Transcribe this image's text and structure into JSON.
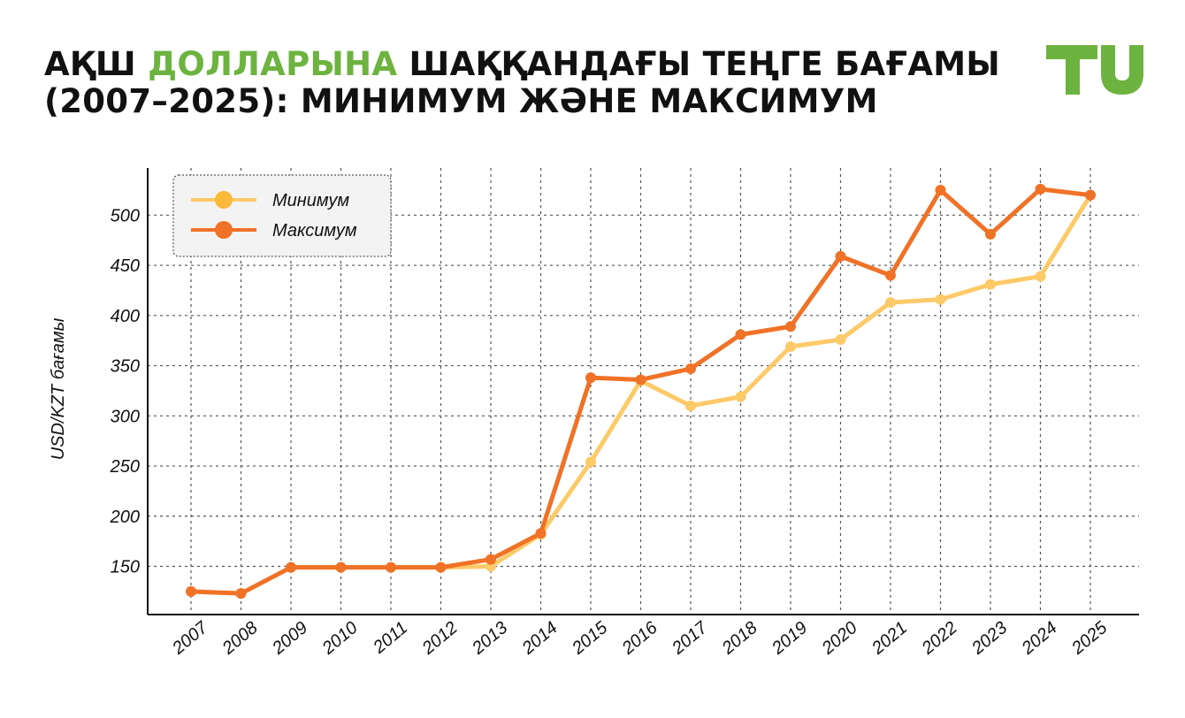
{
  "header": {
    "title_part1": "АҚШ ",
    "title_accent": "ДОЛЛАРЫНА",
    "title_part2": " ШАҚҚАНДАҒЫ ТЕҢГЕ БАҒАМЫ",
    "title_line2": "(2007–2025): МИНИМУМ ЖӘНЕ МАКСИМУМ",
    "logo_text": "TU"
  },
  "colors": {
    "accent": "#6db33f",
    "min_series": "#fdca68",
    "max_series": "#f07227",
    "legend_min_marker": "#fbb93a"
  },
  "chart_data": {
    "type": "line",
    "ylabel": "USD/KZT бағамы",
    "xlabel": "",
    "x": [
      "2007",
      "2008",
      "2009",
      "2010",
      "2011",
      "2012",
      "2013",
      "2014",
      "2015",
      "2016",
      "2017",
      "2018",
      "2019",
      "2020",
      "2021",
      "2022",
      "2023",
      "2024",
      "2025"
    ],
    "series": [
      {
        "name": "Минимум",
        "values": [
          125,
          123,
          149,
          149,
          149,
          149,
          150,
          182,
          254,
          335,
          310,
          319,
          369,
          376,
          413,
          416,
          431,
          439,
          520
        ]
      },
      {
        "name": "Максимум",
        "values": [
          125,
          123,
          149,
          149,
          149,
          149,
          157,
          183,
          338,
          336,
          347,
          381,
          389,
          459,
          440,
          525,
          481,
          526,
          520
        ]
      }
    ],
    "yticks": [
      150,
      200,
      250,
      300,
      350,
      400,
      450,
      500
    ],
    "ylim": [
      102,
      547
    ],
    "grid": true,
    "legend_position": "top-left"
  }
}
